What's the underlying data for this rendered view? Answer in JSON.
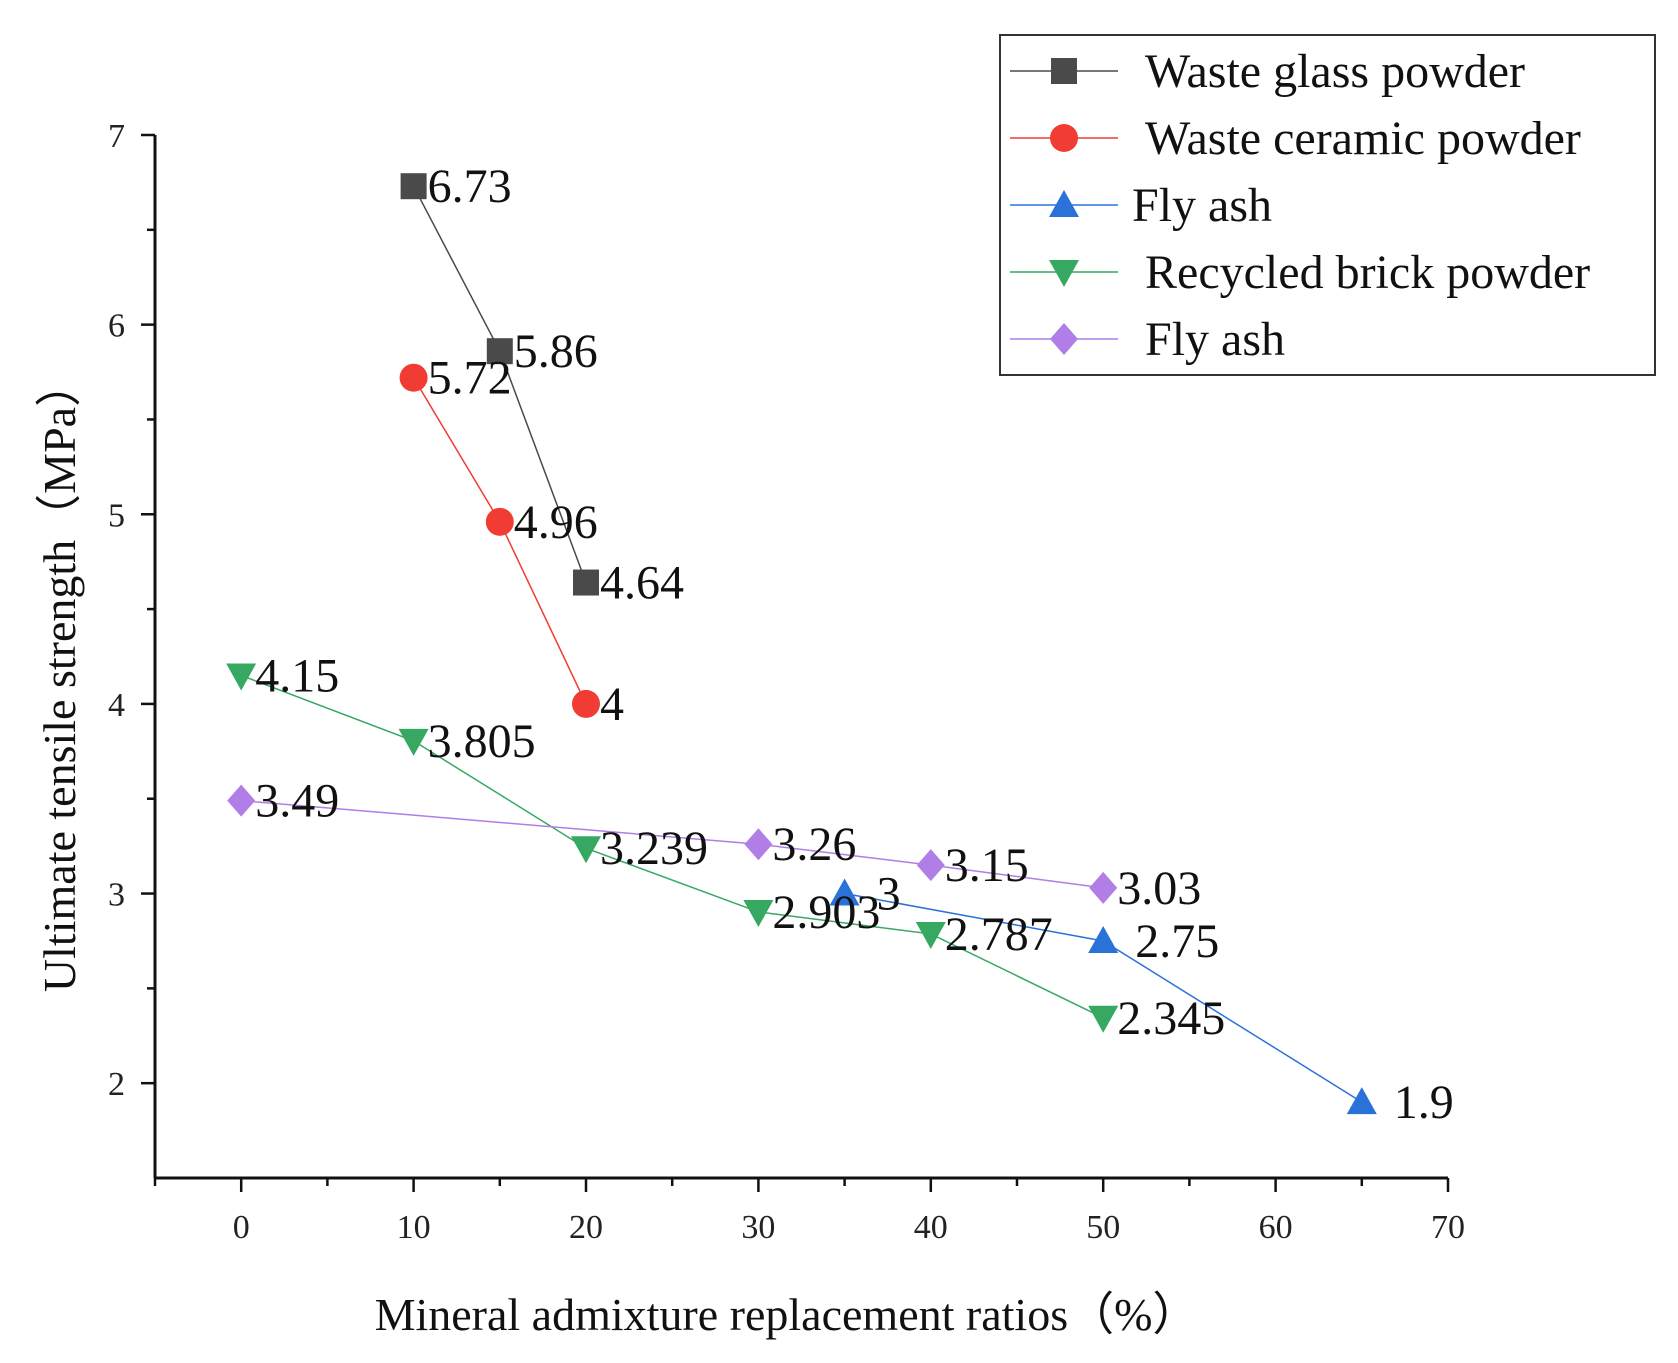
{
  "chart_data": {
    "type": "line",
    "xlabel": "Mineral admixture replacement ratios（%）",
    "ylabel": "Ultimate tensile strength（MPa）",
    "xlim": [
      -5,
      70
    ],
    "ylim": [
      1.5,
      7
    ],
    "xticks": [
      0,
      10,
      20,
      30,
      40,
      50,
      60,
      70
    ],
    "yticks": [
      2,
      3,
      4,
      5,
      6,
      7
    ],
    "legend_position": "top-right",
    "series": [
      {
        "name": "Waste glass powder",
        "marker": "square",
        "color": "#4a4a4a",
        "x": [
          10,
          15,
          20
        ],
        "y": [
          6.73,
          5.86,
          4.64
        ],
        "labels": [
          "6.73",
          "5.86",
          "4.64"
        ]
      },
      {
        "name": "Waste ceramic powder",
        "marker": "circle",
        "color": "#f03c32",
        "x": [
          10,
          15,
          20
        ],
        "y": [
          5.72,
          4.96,
          4
        ],
        "labels": [
          "5.72",
          "4.96",
          "4"
        ]
      },
      {
        "name": "Fly ash",
        "marker": "triangle-up",
        "color": "#2a72d8",
        "x": [
          35,
          50,
          65
        ],
        "y": [
          3,
          2.75,
          1.9
        ],
        "labels": [
          "3",
          "2.75",
          "1.9"
        ]
      },
      {
        "name": "Recycled brick powder",
        "marker": "triangle-down",
        "color": "#36a862",
        "x": [
          0,
          10,
          20,
          30,
          40,
          50
        ],
        "y": [
          4.15,
          3.805,
          3.239,
          2.903,
          2.787,
          2.345
        ],
        "labels": [
          "4.15",
          "3.805",
          "3.239",
          "2.903",
          "2.787",
          "2.345"
        ]
      },
      {
        "name": "Fly ash",
        "marker": "diamond",
        "color": "#b07ee6",
        "x": [
          0,
          30,
          40,
          50
        ],
        "y": [
          3.49,
          3.26,
          3.15,
          3.03
        ],
        "labels": [
          "3.49",
          "3.26",
          "3.15",
          "3.03"
        ]
      }
    ]
  }
}
